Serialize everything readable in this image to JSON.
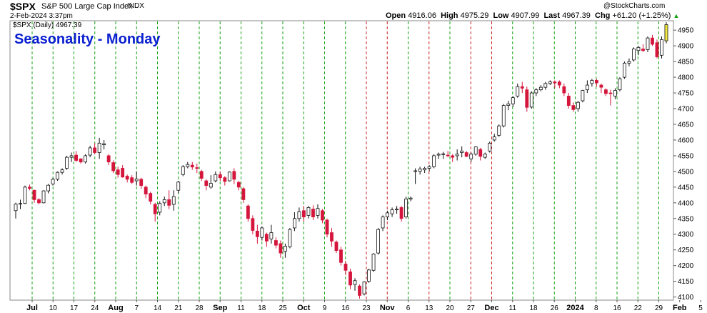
{
  "header": {
    "symbol": "$SPX",
    "name": "S&P 500 Large Cap Index",
    "exchange": "INDX",
    "datetime": "2-Feb-2024 3:37pm",
    "legend": "$SPX (Daily) 4967.39",
    "logo": "@StockCharts.com",
    "open_label": "Open",
    "open": "4916.06",
    "high_label": "High",
    "high": "4975.29",
    "low_label": "Low",
    "low": "4907.99",
    "last_label": "Last",
    "last": "4967.39",
    "chg_label": "Chg",
    "chg": "+61.20 (+1.25%)",
    "chg_icon": "up-triangle-icon"
  },
  "colors": {
    "up": "#ffffff",
    "down": "#d5163c",
    "last": "#f2e940",
    "monday_line": "#11a011",
    "holiday_line": "#cc1f1f",
    "title": "#0a1fd0"
  },
  "chart_data": {
    "type": "candlestick",
    "title": "Seasonality - Monday",
    "ylim": [
      4090,
      4980
    ],
    "y_ticks": [
      4100,
      4150,
      4200,
      4250,
      4300,
      4350,
      4400,
      4450,
      4500,
      4550,
      4600,
      4650,
      4700,
      4750,
      4800,
      4850,
      4900,
      4950
    ],
    "x_ticks": [
      {
        "label": "Jul",
        "bold": true
      },
      {
        "label": "10"
      },
      {
        "label": "17"
      },
      {
        "label": "24"
      },
      {
        "label": "Aug",
        "bold": true
      },
      {
        "label": "7"
      },
      {
        "label": "14"
      },
      {
        "label": "21"
      },
      {
        "label": "28"
      },
      {
        "label": "Sep",
        "bold": true
      },
      {
        "label": "11"
      },
      {
        "label": "18"
      },
      {
        "label": "25"
      },
      {
        "label": "Oct",
        "bold": true
      },
      {
        "label": "9"
      },
      {
        "label": "16"
      },
      {
        "label": "23"
      },
      {
        "label": "Nov",
        "bold": true
      },
      {
        "label": "6"
      },
      {
        "label": "13"
      },
      {
        "label": "20"
      },
      {
        "label": "27"
      },
      {
        "label": "Dec",
        "bold": true
      },
      {
        "label": "11"
      },
      {
        "label": "18"
      },
      {
        "label": "26"
      },
      {
        "label": "2024",
        "bold": true
      },
      {
        "label": "8"
      },
      {
        "label": "16"
      },
      {
        "label": "22"
      },
      {
        "label": "29"
      },
      {
        "label": "Feb",
        "bold": true
      },
      {
        "label": "5"
      }
    ],
    "monday_lines": [
      {
        "label": "Jul 3",
        "color": "green"
      },
      {
        "label": "Jul 10",
        "color": "green"
      },
      {
        "label": "Jul 17",
        "color": "green"
      },
      {
        "label": "Jul 24",
        "color": "green"
      },
      {
        "label": "Jul 31",
        "color": "green"
      },
      {
        "label": "Aug 7",
        "color": "green"
      },
      {
        "label": "Aug 14",
        "color": "green"
      },
      {
        "label": "Aug 21",
        "color": "green"
      },
      {
        "label": "Aug 28",
        "color": "green"
      },
      {
        "label": "Sep 4",
        "color": "green"
      },
      {
        "label": "Sep 11",
        "color": "green"
      },
      {
        "label": "Sep 18",
        "color": "green"
      },
      {
        "label": "Sep 25",
        "color": "green"
      },
      {
        "label": "Oct 2",
        "color": "green"
      },
      {
        "label": "Oct 9",
        "color": "green"
      },
      {
        "label": "Oct 16",
        "color": "green"
      },
      {
        "label": "Oct 23",
        "color": "red"
      },
      {
        "label": "Oct 30",
        "color": "red"
      },
      {
        "label": "Nov 6",
        "color": "green"
      },
      {
        "label": "Nov 13",
        "color": "red"
      },
      {
        "label": "Nov 20",
        "color": "green"
      },
      {
        "label": "Nov 27",
        "color": "red"
      },
      {
        "label": "Dec 4",
        "color": "red"
      },
      {
        "label": "Dec 11",
        "color": "green"
      },
      {
        "label": "Dec 18",
        "color": "green"
      },
      {
        "label": "Dec 26",
        "color": "green"
      },
      {
        "label": "Jan 1",
        "color": "green"
      },
      {
        "label": "Jan 8",
        "color": "green"
      },
      {
        "label": "Jan 16",
        "color": "green"
      },
      {
        "label": "Jan 22",
        "color": "green"
      },
      {
        "label": "Jan 29",
        "color": "green"
      }
    ],
    "candles": [
      [
        4375,
        4400,
        4350,
        4396
      ],
      [
        4396,
        4410,
        4380,
        4398
      ],
      [
        4398,
        4455,
        4396,
        4450
      ],
      [
        4450,
        4458,
        4440,
        4446
      ],
      [
        4440,
        4442,
        4400,
        4410
      ],
      [
        4410,
        4415,
        4395,
        4400
      ],
      [
        4400,
        4440,
        4398,
        4438
      ],
      [
        4438,
        4460,
        4430,
        4456
      ],
      [
        4460,
        4480,
        4455,
        4475
      ],
      [
        4475,
        4500,
        4470,
        4497
      ],
      [
        4497,
        4510,
        4490,
        4505
      ],
      [
        4510,
        4550,
        4505,
        4545
      ],
      [
        4545,
        4560,
        4530,
        4550
      ],
      [
        4552,
        4565,
        4530,
        4535
      ],
      [
        4540,
        4542,
        4525,
        4530
      ],
      [
        4530,
        4555,
        4525,
        4550
      ],
      [
        4552,
        4582,
        4545,
        4575
      ],
      [
        4575,
        4590,
        4555,
        4560
      ],
      [
        4560,
        4607,
        4540,
        4590
      ],
      [
        4585,
        4600,
        4570,
        4588
      ],
      [
        4550,
        4555,
        4520,
        4530
      ],
      [
        4528,
        4535,
        4495,
        4502
      ],
      [
        4505,
        4515,
        4480,
        4490
      ],
      [
        4510,
        4520,
        4480,
        4482
      ],
      [
        4485,
        4490,
        4465,
        4475
      ],
      [
        4480,
        4488,
        4460,
        4465
      ],
      [
        4470,
        4500,
        4455,
        4476
      ],
      [
        4475,
        4480,
        4445,
        4455
      ],
      [
        4450,
        4455,
        4415,
        4428
      ],
      [
        4430,
        4435,
        4395,
        4405
      ],
      [
        4395,
        4400,
        4340,
        4365
      ],
      [
        4370,
        4405,
        4360,
        4398
      ],
      [
        4400,
        4420,
        4390,
        4410
      ],
      [
        4410,
        4440,
        4380,
        4392
      ],
      [
        4395,
        4440,
        4375,
        4420
      ],
      [
        4440,
        4470,
        4430,
        4466
      ],
      [
        4490,
        4520,
        4485,
        4515
      ],
      [
        4515,
        4530,
        4510,
        4522
      ],
      [
        4520,
        4530,
        4505,
        4514
      ],
      [
        4512,
        4525,
        4495,
        4510
      ],
      [
        4500,
        4505,
        4470,
        4478
      ],
      [
        4470,
        4475,
        4440,
        4455
      ],
      [
        4450,
        4488,
        4445,
        4462
      ],
      [
        4470,
        4500,
        4465,
        4490
      ],
      [
        4490,
        4500,
        4470,
        4480
      ],
      [
        4480,
        4485,
        4455,
        4468
      ],
      [
        4470,
        4500,
        4468,
        4498
      ],
      [
        4500,
        4510,
        4460,
        4475
      ],
      [
        4465,
        4470,
        4440,
        4450
      ],
      [
        4445,
        4450,
        4400,
        4410
      ],
      [
        4390,
        4395,
        4340,
        4350
      ],
      [
        4350,
        4360,
        4300,
        4312
      ],
      [
        4310,
        4330,
        4270,
        4292
      ],
      [
        4290,
        4325,
        4280,
        4320
      ],
      [
        4300,
        4305,
        4260,
        4278
      ],
      [
        4285,
        4330,
        4270,
        4305
      ],
      [
        4280,
        4290,
        4255,
        4265
      ],
      [
        4270,
        4280,
        4225,
        4240
      ],
      [
        4245,
        4270,
        4225,
        4262
      ],
      [
        4260,
        4320,
        4255,
        4315
      ],
      [
        4320,
        4370,
        4310,
        4350
      ],
      [
        4350,
        4385,
        4340,
        4372
      ],
      [
        4375,
        4390,
        4340,
        4355
      ],
      [
        4360,
        4390,
        4350,
        4385
      ],
      [
        4380,
        4392,
        4345,
        4355
      ],
      [
        4360,
        4395,
        4350,
        4382
      ],
      [
        4375,
        4380,
        4335,
        4345
      ],
      [
        4345,
        4350,
        4290,
        4300
      ],
      [
        4305,
        4320,
        4260,
        4278
      ],
      [
        4275,
        4280,
        4240,
        4248
      ],
      [
        4250,
        4260,
        4200,
        4210
      ],
      [
        4205,
        4215,
        4170,
        4185
      ],
      [
        4180,
        4190,
        4125,
        4138
      ],
      [
        4140,
        4160,
        4120,
        4152
      ],
      [
        4135,
        4140,
        4095,
        4105
      ],
      [
        4110,
        4150,
        4105,
        4148
      ],
      [
        4150,
        4190,
        4145,
        4186
      ],
      [
        4185,
        4240,
        4180,
        4237
      ],
      [
        4240,
        4320,
        4235,
        4315
      ],
      [
        4320,
        4360,
        4310,
        4355
      ],
      [
        4355,
        4375,
        4345,
        4368
      ],
      [
        4365,
        4385,
        4355,
        4378
      ],
      [
        4378,
        4390,
        4365,
        4380
      ],
      [
        4385,
        4390,
        4340,
        4350
      ],
      [
        4355,
        4420,
        4350,
        4412
      ],
      [
        4412,
        4420,
        4405,
        4415
      ],
      [
        4500,
        4510,
        4460,
        4502
      ],
      [
        4500,
        4515,
        4490,
        4508
      ],
      [
        4505,
        4515,
        4495,
        4510
      ],
      [
        4510,
        4520,
        4500,
        4515
      ],
      [
        4515,
        4555,
        4510,
        4550
      ],
      [
        4552,
        4560,
        4540,
        4555
      ],
      [
        4555,
        4562,
        4540,
        4556
      ],
      [
        4552,
        4565,
        4545,
        4550
      ],
      [
        4550,
        4555,
        4530,
        4545
      ],
      [
        4550,
        4570,
        4535,
        4555
      ],
      [
        4560,
        4580,
        4545,
        4565
      ],
      [
        4560,
        4565,
        4545,
        4548
      ],
      [
        4540,
        4560,
        4530,
        4555
      ],
      [
        4555,
        4580,
        4550,
        4578
      ],
      [
        4570,
        4575,
        4535,
        4548
      ],
      [
        4545,
        4560,
        4540,
        4555
      ],
      [
        4565,
        4595,
        4560,
        4590
      ],
      [
        4600,
        4620,
        4595,
        4610
      ],
      [
        4615,
        4650,
        4610,
        4645
      ],
      [
        4645,
        4715,
        4640,
        4710
      ],
      [
        4710,
        4725,
        4695,
        4715
      ],
      [
        4715,
        4740,
        4705,
        4735
      ],
      [
        4740,
        4780,
        4735,
        4770
      ],
      [
        4770,
        4785,
        4750,
        4765
      ],
      [
        4760,
        4770,
        4690,
        4704
      ],
      [
        4705,
        4755,
        4700,
        4750
      ],
      [
        4750,
        4765,
        4740,
        4760
      ],
      [
        4760,
        4775,
        4755,
        4768
      ],
      [
        4768,
        4785,
        4760,
        4780
      ],
      [
        4780,
        4790,
        4775,
        4785
      ],
      [
        4785,
        4790,
        4765,
        4782
      ],
      [
        4785,
        4790,
        4765,
        4775
      ],
      [
        4770,
        4780,
        4740,
        4750
      ],
      [
        4740,
        4750,
        4700,
        4710
      ],
      [
        4710,
        4720,
        4690,
        4697
      ],
      [
        4700,
        4725,
        4690,
        4720
      ],
      [
        4725,
        4760,
        4720,
        4758
      ],
      [
        4760,
        4790,
        4750,
        4775
      ],
      [
        4780,
        4795,
        4770,
        4790
      ],
      [
        4790,
        4795,
        4770,
        4782
      ],
      [
        4775,
        4780,
        4750,
        4768
      ],
      [
        4760,
        4765,
        4740,
        4748
      ],
      [
        4750,
        4760,
        4710,
        4748
      ],
      [
        4740,
        4765,
        4730,
        4758
      ],
      [
        4760,
        4800,
        4755,
        4795
      ],
      [
        4800,
        4850,
        4795,
        4845
      ],
      [
        4845,
        4860,
        4835,
        4850
      ],
      [
        4855,
        4895,
        4850,
        4890
      ],
      [
        4885,
        4900,
        4870,
        4895
      ],
      [
        4890,
        4905,
        4880,
        4885
      ],
      [
        4888,
        4930,
        4880,
        4925
      ],
      [
        4925,
        4935,
        4900,
        4905
      ],
      [
        4910,
        4920,
        4860,
        4865
      ],
      [
        4870,
        4930,
        4860,
        4920
      ],
      [
        4916.06,
        4975.29,
        4907.99,
        4967.39
      ]
    ]
  }
}
